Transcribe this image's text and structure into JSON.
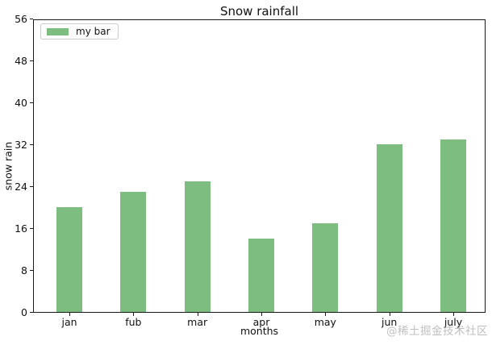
{
  "watermark": "@稀土掘金技术社区",
  "chart_data": {
    "type": "bar",
    "title": "Snow rainfall",
    "xlabel": "months",
    "ylabel": "snow rain",
    "categories": [
      "jan",
      "fub",
      "mar",
      "apr",
      "may",
      "jun",
      "july"
    ],
    "values": [
      20,
      23,
      25,
      14,
      17,
      32,
      33
    ],
    "series": [
      {
        "name": "my bar",
        "values": [
          20,
          23,
          25,
          14,
          17,
          32,
          33
        ]
      }
    ],
    "legend": {
      "label": "my bar",
      "position": "upper-left"
    },
    "bar_color": "#7dbe80",
    "ylim": [
      0,
      56
    ],
    "yticks": [
      0,
      8,
      16,
      24,
      32,
      40,
      48,
      56
    ],
    "grid": false,
    "background": "#ffffff"
  }
}
